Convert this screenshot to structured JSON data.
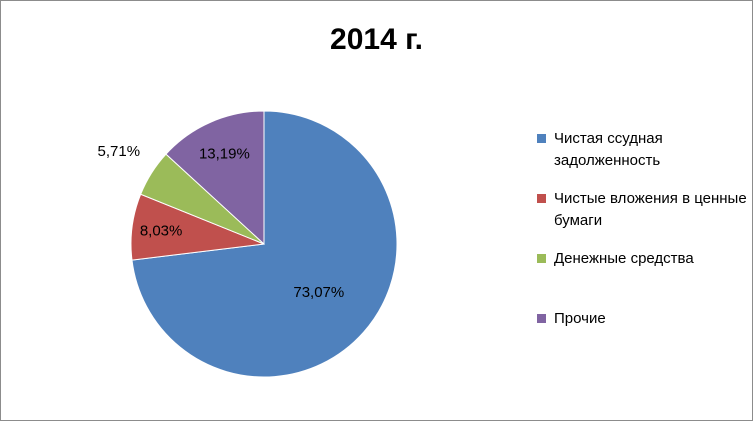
{
  "chart_data": {
    "type": "pie",
    "title": "2014 г.",
    "slices": [
      {
        "name": "Чистая ссудная задолженность",
        "value": 73.07,
        "label": "73,07%",
        "color": "#4f81bd"
      },
      {
        "name": "Чистые вложения в ценные бумаги",
        "value": 8.03,
        "label": "8,03%",
        "color": "#c0504d"
      },
      {
        "name": "Денежные средства",
        "value": 5.71,
        "label": "5,71%",
        "color": "#9bbb59"
      },
      {
        "name": "Прочие",
        "value": 13.19,
        "label": "13,19%",
        "color": "#8064a2"
      }
    ],
    "legend_position": "right"
  }
}
